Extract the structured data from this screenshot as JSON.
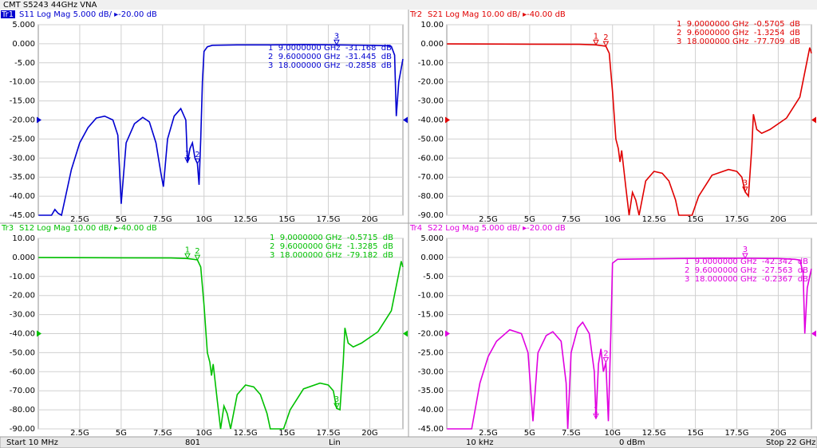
{
  "window": {
    "title": "CMT S5243 44GHz VNA",
    "status": [
      "Start 10 MHz",
      "801",
      "Lin",
      "10 kHz",
      "0 dBm",
      "Stop 22 GHz"
    ]
  },
  "chart_data": [
    {
      "type": "line",
      "trace": "Tr1",
      "title": "S11 Log Mag 5.000 dB/ ▸-20.00 dB",
      "color": "#0000d0",
      "active": true,
      "ref": -20,
      "grid": true,
      "xlim": [
        0,
        22
      ],
      "ylim": [
        -45,
        5
      ],
      "xticks": [
        {
          "value": 2.5,
          "label": "2.5G"
        },
        {
          "value": 5,
          "label": "5G"
        },
        {
          "value": 7.5,
          "label": "7.5G"
        },
        {
          "value": 10,
          "label": "10G"
        },
        {
          "value": 12.5,
          "label": "12.5G"
        },
        {
          "value": 15,
          "label": "15G"
        },
        {
          "value": 17.5,
          "label": "17.5G"
        },
        {
          "value": 20,
          "label": "20G"
        }
      ],
      "yticks": [
        {
          "value": 5,
          "label": "5.000"
        },
        {
          "value": 0,
          "label": "0.000"
        },
        {
          "value": -5,
          "label": "-5.00"
        },
        {
          "value": -10,
          "label": "-10.00"
        },
        {
          "value": -15,
          "label": "-15.00"
        },
        {
          "value": -20,
          "label": "-20.00"
        },
        {
          "value": -25,
          "label": "-25.00"
        },
        {
          "value": -30,
          "label": "-30.00"
        },
        {
          "value": -35,
          "label": "-35.00"
        },
        {
          "value": -40,
          "label": "-40.00"
        },
        {
          "value": -45,
          "label": "-45.00"
        }
      ],
      "x": [
        0.01,
        0.8,
        1.0,
        1.2,
        1.4,
        2.0,
        2.5,
        3.0,
        3.5,
        4.0,
        4.5,
        4.8,
        5.0,
        5.3,
        5.8,
        6.3,
        6.7,
        7.1,
        7.4,
        7.55,
        7.8,
        8.2,
        8.6,
        8.9,
        9.0,
        9.15,
        9.3,
        9.45,
        9.6,
        9.7,
        9.8,
        9.9,
        10.0,
        10.2,
        10.5,
        12,
        14,
        16,
        18,
        20,
        21,
        21.3,
        21.5,
        21.6,
        21.75,
        22
      ],
      "values": [
        -45,
        -45,
        -43.5,
        -44.5,
        -45,
        -33,
        -26,
        -22,
        -19.5,
        -19,
        -20,
        -24,
        -42,
        -26,
        -21,
        -19.3,
        -20.5,
        -26,
        -34,
        -37.5,
        -25,
        -19,
        -17,
        -20,
        -31.2,
        -27.5,
        -26,
        -30,
        -31.4,
        -37,
        -25,
        -10,
        -2,
        -0.8,
        -0.4,
        -0.3,
        -0.3,
        -0.2,
        -0.3,
        -0.4,
        -0.5,
        -0.7,
        -3,
        -19,
        -10,
        -4
      ],
      "markers": [
        {
          "id": "1",
          "x": 9.0,
          "y": -31.168,
          "readout": "1  9.0000000 GHz  -31.168  dB"
        },
        {
          "id": "2",
          "x": 9.6,
          "y": -31.445,
          "readout": "2  9.6000000 GHz  -31.445  dB"
        },
        {
          "id": "3",
          "x": 18.0,
          "y": -0.2858,
          "readout": "3  18.000000 GHz  -0.2858  dB"
        }
      ]
    },
    {
      "type": "line",
      "trace": "Tr2",
      "title": "S21 Log Mag 10.00 dB/ ▸-40.00 dB",
      "color": "#e00000",
      "active": false,
      "ref": -40,
      "grid": true,
      "xlim": [
        0,
        22
      ],
      "ylim": [
        -90,
        10
      ],
      "xticks": [
        {
          "value": 2.5,
          "label": "2.5G"
        },
        {
          "value": 5,
          "label": "5G"
        },
        {
          "value": 7.5,
          "label": "7.5G"
        },
        {
          "value": 10,
          "label": "10G"
        },
        {
          "value": 12.5,
          "label": "12.5G"
        },
        {
          "value": 15,
          "label": "15G"
        },
        {
          "value": 17.5,
          "label": "17.5G"
        },
        {
          "value": 20,
          "label": "20G"
        }
      ],
      "yticks": [
        {
          "value": 10,
          "label": "10.00"
        },
        {
          "value": 0,
          "label": "0.000"
        },
        {
          "value": -10,
          "label": "-10.00"
        },
        {
          "value": -20,
          "label": "-20.00"
        },
        {
          "value": -30,
          "label": "-30.00"
        },
        {
          "value": -40,
          "label": "-40.00"
        },
        {
          "value": -50,
          "label": "-50.00"
        },
        {
          "value": -60,
          "label": "-60.00"
        },
        {
          "value": -70,
          "label": "-70.00"
        },
        {
          "value": -80,
          "label": "-80.00"
        },
        {
          "value": -90,
          "label": "-90.00"
        }
      ],
      "x": [
        0.01,
        5,
        8,
        9,
        9.6,
        9.8,
        10.0,
        10.2,
        10.35,
        10.45,
        10.55,
        10.8,
        11.0,
        11.2,
        11.4,
        11.6,
        12.0,
        12.5,
        13.0,
        13.4,
        13.8,
        14.0,
        14.8,
        15.2,
        16.0,
        17.0,
        17.5,
        17.8,
        18.0,
        18.2,
        18.4,
        18.5,
        18.7,
        19.0,
        19.5,
        20.5,
        21.3,
        21.9,
        22
      ],
      "values": [
        -0.1,
        -0.2,
        -0.3,
        -0.57,
        -1.3,
        -5,
        -25,
        -50,
        -55,
        -62,
        -56,
        -75,
        -90,
        -78,
        -82,
        -90,
        -72,
        -67,
        -68,
        -72,
        -82,
        -90,
        -90,
        -80,
        -69,
        -66,
        -67,
        -70,
        -77.7,
        -80,
        -55,
        -37,
        -45,
        -47,
        -45,
        -39,
        -28,
        -2,
        -5
      ],
      "markers": [
        {
          "id": "1",
          "x": 9.0,
          "y": -0.5705,
          "readout": "1  9.0000000 GHz  -0.5705  dB"
        },
        {
          "id": "2",
          "x": 9.6,
          "y": -1.3254,
          "readout": "2  9.6000000 GHz  -1.3254  dB"
        },
        {
          "id": "3",
          "x": 18.0,
          "y": -77.709,
          "readout": "3  18.000000 GHz  -77.709  dB"
        }
      ]
    },
    {
      "type": "line",
      "trace": "Tr3",
      "title": "S12 Log Mag 10.00 dB/ ▸-40.00 dB",
      "color": "#00c000",
      "active": false,
      "ref": -40,
      "grid": true,
      "xlim": [
        0,
        22
      ],
      "ylim": [
        -90,
        10
      ],
      "xticks": [
        {
          "value": 2.5,
          "label": "2.5G"
        },
        {
          "value": 5,
          "label": "5G"
        },
        {
          "value": 7.5,
          "label": "7.5G"
        },
        {
          "value": 10,
          "label": "10G"
        },
        {
          "value": 12.5,
          "label": "12.5G"
        },
        {
          "value": 15,
          "label": "15G"
        },
        {
          "value": 17.5,
          "label": "17.5G"
        },
        {
          "value": 20,
          "label": "20G"
        }
      ],
      "yticks": [
        {
          "value": 10,
          "label": "10.00"
        },
        {
          "value": 0,
          "label": "0.000"
        },
        {
          "value": -10,
          "label": "-10.00"
        },
        {
          "value": -20,
          "label": "-20.00"
        },
        {
          "value": -30,
          "label": "-30.00"
        },
        {
          "value": -40,
          "label": "-40.00"
        },
        {
          "value": -50,
          "label": "-50.00"
        },
        {
          "value": -60,
          "label": "-60.00"
        },
        {
          "value": -70,
          "label": "-70.00"
        },
        {
          "value": -80,
          "label": "-80.00"
        },
        {
          "value": -90,
          "label": "-90.00"
        }
      ],
      "x": [
        0.01,
        5,
        8,
        9,
        9.6,
        9.8,
        10.0,
        10.2,
        10.35,
        10.45,
        10.55,
        10.8,
        11.0,
        11.2,
        11.4,
        11.6,
        12.0,
        12.5,
        13.0,
        13.4,
        13.8,
        14.0,
        14.8,
        15.2,
        16.0,
        17.0,
        17.5,
        17.8,
        18.0,
        18.2,
        18.4,
        18.5,
        18.7,
        19.0,
        19.5,
        20.5,
        21.3,
        21.9,
        22
      ],
      "values": [
        -0.1,
        -0.2,
        -0.3,
        -0.57,
        -1.3,
        -5,
        -25,
        -50,
        -55,
        -62,
        -56,
        -75,
        -90,
        -78,
        -82,
        -90,
        -72,
        -67,
        -68,
        -72,
        -82,
        -90,
        -90,
        -80,
        -69,
        -66,
        -67,
        -70,
        -79.2,
        -80,
        -55,
        -37,
        -45,
        -47,
        -45,
        -39,
        -28,
        -2,
        -5
      ],
      "markers": [
        {
          "id": "1",
          "x": 9.0,
          "y": -0.5715,
          "readout": "1  9.0000000 GHz  -0.5715  dB"
        },
        {
          "id": "2",
          "x": 9.6,
          "y": -1.3285,
          "readout": "2  9.6000000 GHz  -1.3285  dB"
        },
        {
          "id": "3",
          "x": 18.0,
          "y": -79.182,
          "readout": "3  18.000000 GHz  -79.182  dB"
        }
      ]
    },
    {
      "type": "line",
      "trace": "Tr4",
      "title": "S22 Log Mag 5.000 dB/ ▸-20.00 dB",
      "color": "#e000e0",
      "active": false,
      "ref": -20,
      "grid": true,
      "xlim": [
        0,
        22
      ],
      "ylim": [
        -45,
        5
      ],
      "xticks": [
        {
          "value": 2.5,
          "label": "2.5G"
        },
        {
          "value": 5,
          "label": "5G"
        },
        {
          "value": 7.5,
          "label": "7.5G"
        },
        {
          "value": 10,
          "label": "10G"
        },
        {
          "value": 12.5,
          "label": "12.5G"
        },
        {
          "value": 15,
          "label": "15G"
        },
        {
          "value": 17.5,
          "label": "17.5G"
        },
        {
          "value": 20,
          "label": "20G"
        }
      ],
      "yticks": [
        {
          "value": 5,
          "label": "5.000"
        },
        {
          "value": 0,
          "label": "0.000"
        },
        {
          "value": -5,
          "label": "-5.00"
        },
        {
          "value": -10,
          "label": "-10.00"
        },
        {
          "value": -15,
          "label": "-15.00"
        },
        {
          "value": -20,
          "label": "-20.00"
        },
        {
          "value": -25,
          "label": "-25.00"
        },
        {
          "value": -30,
          "label": "-30.00"
        },
        {
          "value": -35,
          "label": "-35.00"
        },
        {
          "value": -40,
          "label": "-40.00"
        },
        {
          "value": -45,
          "label": "-45.00"
        }
      ],
      "x": [
        0.01,
        1.5,
        2.0,
        2.5,
        3.0,
        3.8,
        4.5,
        4.9,
        5.2,
        5.5,
        6.0,
        6.4,
        6.9,
        7.2,
        7.3,
        7.5,
        7.9,
        8.2,
        8.6,
        8.9,
        9.0,
        9.15,
        9.3,
        9.45,
        9.6,
        9.75,
        9.9,
        10.0,
        10.3,
        12,
        14,
        16,
        18,
        20,
        21,
        21.3,
        21.5,
        21.6,
        21.75,
        22
      ],
      "values": [
        -45,
        -45,
        -33,
        -26,
        -22,
        -19,
        -20,
        -25,
        -43,
        -25,
        -20.5,
        -19.5,
        -22,
        -33,
        -45,
        -25,
        -18.5,
        -17,
        -20,
        -30,
        -42.3,
        -28,
        -24,
        -30,
        -27.6,
        -43,
        -20,
        -1.5,
        -0.5,
        -0.4,
        -0.3,
        -0.2,
        -0.24,
        -0.3,
        -0.5,
        -0.7,
        -4,
        -20,
        -8,
        -3
      ],
      "markers": [
        {
          "id": "1",
          "x": 9.0,
          "y": -42.342,
          "readout": "1  9.0000000 GHz  -42.342  dB"
        },
        {
          "id": "2",
          "x": 9.6,
          "y": -27.563,
          "readout": "2  9.6000000 GHz  -27.563  dB"
        },
        {
          "id": "3",
          "x": 18.0,
          "y": -0.2367,
          "readout": "3  18.000000 GHz  -0.2367  dB"
        }
      ]
    }
  ]
}
